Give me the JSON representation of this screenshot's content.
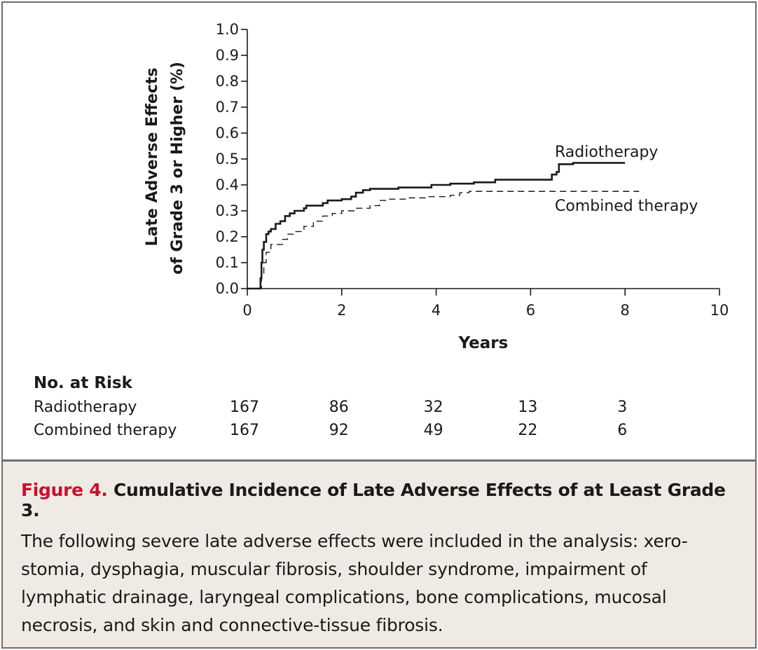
{
  "chart_data": {
    "type": "line",
    "ylabel_line1": "Late Adverse Effects",
    "ylabel_line2": "of Grade 3 or Higher (%)",
    "xlabel": "Years",
    "xlim": [
      0,
      10
    ],
    "ylim": [
      0,
      1.0
    ],
    "xticks": [
      "0",
      "2",
      "4",
      "6",
      "8",
      "10"
    ],
    "yticks": [
      "0.0",
      "0.1",
      "0.2",
      "0.3",
      "0.4",
      "0.5",
      "0.6",
      "0.7",
      "0.8",
      "0.9",
      "1.0"
    ],
    "series": [
      {
        "name": "Radiotherapy",
        "style": "solid",
        "points": [
          [
            0,
            0
          ],
          [
            0.25,
            0
          ],
          [
            0.28,
            0.04
          ],
          [
            0.3,
            0.1
          ],
          [
            0.32,
            0.15
          ],
          [
            0.35,
            0.18
          ],
          [
            0.4,
            0.21
          ],
          [
            0.45,
            0.22
          ],
          [
            0.5,
            0.23
          ],
          [
            0.6,
            0.25
          ],
          [
            0.7,
            0.26
          ],
          [
            0.8,
            0.28
          ],
          [
            0.9,
            0.29
          ],
          [
            1.0,
            0.3
          ],
          [
            1.2,
            0.31
          ],
          [
            1.25,
            0.32
          ],
          [
            1.6,
            0.33
          ],
          [
            1.7,
            0.34
          ],
          [
            2.0,
            0.345
          ],
          [
            2.2,
            0.355
          ],
          [
            2.3,
            0.37
          ],
          [
            2.45,
            0.38
          ],
          [
            2.6,
            0.385
          ],
          [
            3.2,
            0.39
          ],
          [
            3.9,
            0.4
          ],
          [
            4.3,
            0.405
          ],
          [
            4.8,
            0.41
          ],
          [
            5.25,
            0.42
          ],
          [
            6.4,
            0.42
          ],
          [
            6.45,
            0.44
          ],
          [
            6.55,
            0.45
          ],
          [
            6.6,
            0.48
          ],
          [
            6.9,
            0.485
          ],
          [
            8.0,
            0.485
          ]
        ]
      },
      {
        "name": "Combined therapy",
        "style": "dashed",
        "points": [
          [
            0,
            0
          ],
          [
            0.25,
            0
          ],
          [
            0.3,
            0.05
          ],
          [
            0.35,
            0.1
          ],
          [
            0.4,
            0.14
          ],
          [
            0.5,
            0.17
          ],
          [
            0.7,
            0.17
          ],
          [
            0.75,
            0.19
          ],
          [
            0.85,
            0.21
          ],
          [
            1.0,
            0.22
          ],
          [
            1.2,
            0.24
          ],
          [
            1.4,
            0.26
          ],
          [
            1.6,
            0.28
          ],
          [
            1.8,
            0.29
          ],
          [
            2.0,
            0.3
          ],
          [
            2.3,
            0.31
          ],
          [
            2.6,
            0.32
          ],
          [
            2.8,
            0.34
          ],
          [
            3.0,
            0.345
          ],
          [
            3.4,
            0.35
          ],
          [
            3.8,
            0.355
          ],
          [
            4.3,
            0.36
          ],
          [
            4.5,
            0.37
          ],
          [
            4.7,
            0.375
          ],
          [
            6.0,
            0.375
          ],
          [
            8.3,
            0.375
          ]
        ]
      }
    ],
    "annotations": [
      "Radiotherapy",
      "Combined therapy"
    ],
    "risk_table": {
      "heading": "No. at Risk",
      "rows": [
        {
          "label": "Radiotherapy",
          "values": [
            "167",
            "86",
            "32",
            "13",
            "3"
          ]
        },
        {
          "label": "Combined therapy",
          "values": [
            "167",
            "92",
            "49",
            "22",
            "6"
          ]
        }
      ],
      "at_years": [
        0,
        2,
        4,
        6,
        8
      ]
    }
  },
  "caption": {
    "label": "Figure 4.",
    "title": "Cumulative Incidence of Late Adverse Effects of at Least Grade 3.",
    "body": "The following severe late adverse effects were included in the analysis: xero-stomia, dysphagia, muscular fibrosis, shoulder syndrome, impairment of lymphatic drainage, laryngeal complications, bone complications, mucosal necrosis, and skin and connective-tissue fibrosis."
  },
  "colors": {
    "line": "#1a1a1a",
    "frame": "#6e6e6e",
    "caption_bg": "#efebe4",
    "caption_label": "#c8102e"
  }
}
